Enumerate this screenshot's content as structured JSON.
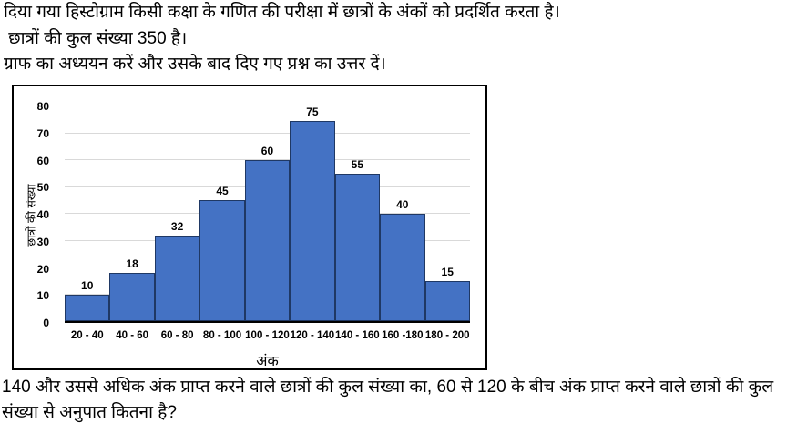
{
  "page": {
    "intro_lines": [
      "दिया गया हिस्टोग्राम किसी कक्षा के गणित की परीक्षा में छात्रों के अंकों को प्रदर्शित करता है।",
      " छात्रों की कुल संख्या 350 है।",
      "ग्राफ का अध्ययन करें और उसके बाद दिए गए प्रश्न का उत्तर दें।"
    ],
    "question": "140 और उससे अधिक अंक प्राप्त करने वाले छात्रों की कुल संख्या का, 60 से 120 के बीच अंक प्राप्त करने वाले छात्रों की कुल संख्या से अनुपात कितना है?"
  },
  "chart_data": {
    "type": "bar",
    "title": "",
    "categories": [
      "20 - 40",
      "40 - 60",
      "60 - 80",
      "80 - 100",
      "100 - 120",
      "120 - 140",
      "140 - 160",
      "160 -180",
      "180 - 200"
    ],
    "values": [
      10,
      18,
      32,
      45,
      60,
      75,
      55,
      40,
      15
    ],
    "xlabel": "अंक",
    "ylabel": "छात्रों की संख्या",
    "ylim": [
      0,
      80
    ],
    "ytick_step": 10,
    "yticks": [
      0,
      10,
      20,
      30,
      40,
      50,
      60,
      70,
      80
    ],
    "grid": true,
    "legend": false,
    "data_labels": true,
    "colors": {
      "bar_fill": "#4472C4",
      "bar_border": "#1F3864",
      "gridline": "#D9D9D9",
      "frame_border": "#000000",
      "text": "#000000"
    }
  }
}
